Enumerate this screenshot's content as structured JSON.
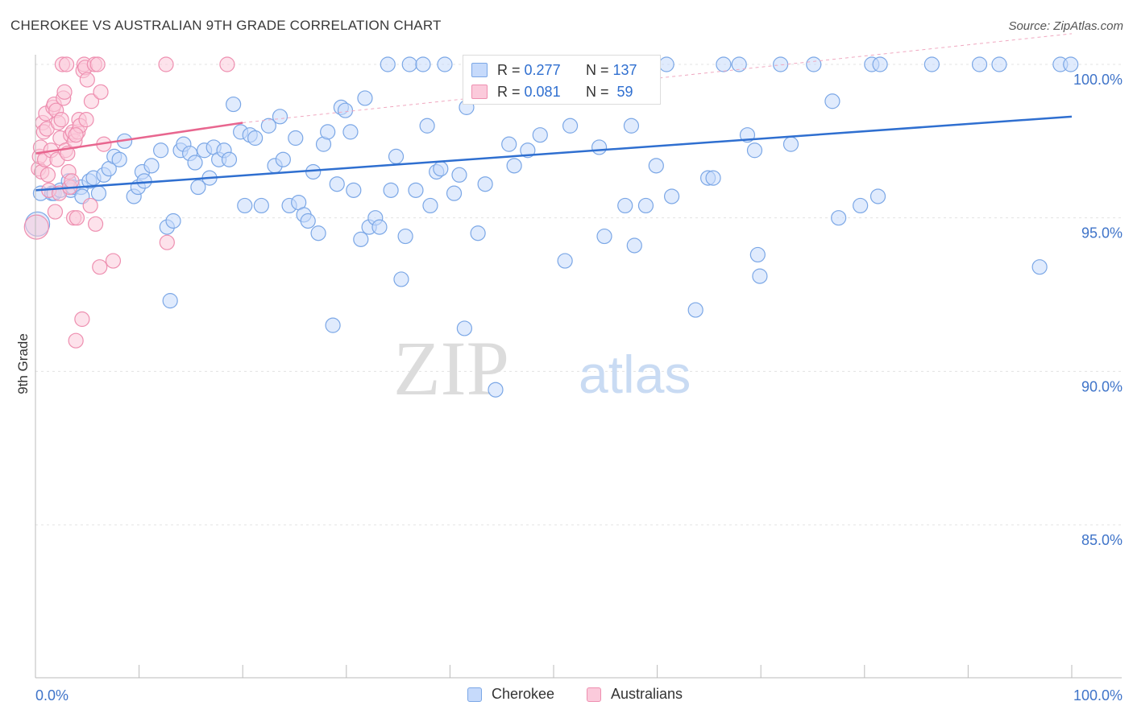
{
  "title": "CHEROKEE VS AUSTRALIAN 9TH GRADE CORRELATION CHART",
  "source": "Source: ZipAtlas.com",
  "watermark": {
    "zip": "ZIP",
    "atlas": "atlas"
  },
  "stats": [
    {
      "r_label": "R =",
      "r_value": "0.277",
      "n_label": "N =",
      "n_value": "137",
      "color": "#7ba7e6",
      "fill": "#c6dafb"
    },
    {
      "r_label": "R =",
      "r_value": "0.081",
      "n_label": "N =",
      "n_value": "59",
      "color": "#ee8fb0",
      "fill": "#fbcadb"
    }
  ],
  "legend": [
    {
      "label": "Cherokee",
      "color": "#7ba7e6",
      "fill": "#c6dafb"
    },
    {
      "label": "Australians",
      "color": "#ee8fb0",
      "fill": "#fbcadb"
    }
  ],
  "chart_data": {
    "type": "scatter",
    "title": "CHEROKEE VS AUSTRALIAN 9TH GRADE CORRELATION CHART",
    "xlabel": "",
    "ylabel": "9th Grade",
    "xlim": [
      0,
      100
    ],
    "ylim": [
      80.5,
      101
    ],
    "x_tick_labels": [
      "0.0%",
      "100.0%"
    ],
    "y_ticks": [
      85,
      90,
      95,
      100
    ],
    "y_tick_labels": [
      "85.0%",
      "90.0%",
      "95.0%",
      "100.0%"
    ],
    "grid": true,
    "legend_position": "bottom",
    "series": [
      {
        "name": "Cherokee",
        "color": "#2f6fd0",
        "fill": "#c6dafb",
        "stroke": "#7ba7e6",
        "trendline": {
          "x": [
            0,
            100
          ],
          "y": [
            95.9,
            98.3
          ]
        },
        "points": [
          [
            0.2,
            94.8
          ],
          [
            0.5,
            95.8
          ],
          [
            1.6,
            95.8
          ],
          [
            1.8,
            95.8
          ],
          [
            2.4,
            95.9
          ],
          [
            3.2,
            96.2
          ],
          [
            3.4,
            95.9
          ],
          [
            3.6,
            96.0
          ],
          [
            4.4,
            96.0
          ],
          [
            4.5,
            95.7
          ],
          [
            5.2,
            96.2
          ],
          [
            5.6,
            96.3
          ],
          [
            6.1,
            95.8
          ],
          [
            6.6,
            96.4
          ],
          [
            7.1,
            96.6
          ],
          [
            7.6,
            97.0
          ],
          [
            8.1,
            96.9
          ],
          [
            8.6,
            97.5
          ],
          [
            9.5,
            95.7
          ],
          [
            9.9,
            96.0
          ],
          [
            10.3,
            96.5
          ],
          [
            10.5,
            96.2
          ],
          [
            11.2,
            96.7
          ],
          [
            12.1,
            97.2
          ],
          [
            12.7,
            94.7
          ],
          [
            13.0,
            92.3
          ],
          [
            13.3,
            94.9
          ],
          [
            14.0,
            97.2
          ],
          [
            14.3,
            97.4
          ],
          [
            14.9,
            97.1
          ],
          [
            15.4,
            96.8
          ],
          [
            15.7,
            96.0
          ],
          [
            16.3,
            97.2
          ],
          [
            16.8,
            96.3
          ],
          [
            17.2,
            97.3
          ],
          [
            17.7,
            96.9
          ],
          [
            18.2,
            97.2
          ],
          [
            18.7,
            96.9
          ],
          [
            19.1,
            98.7
          ],
          [
            19.8,
            97.8
          ],
          [
            20.2,
            95.4
          ],
          [
            20.7,
            97.7
          ],
          [
            21.2,
            97.6
          ],
          [
            21.8,
            95.4
          ],
          [
            22.5,
            98.0
          ],
          [
            23.1,
            96.7
          ],
          [
            23.6,
            98.3
          ],
          [
            23.9,
            96.9
          ],
          [
            24.5,
            95.4
          ],
          [
            25.1,
            97.6
          ],
          [
            25.4,
            95.5
          ],
          [
            25.9,
            95.1
          ],
          [
            26.3,
            94.9
          ],
          [
            26.8,
            96.5
          ],
          [
            27.3,
            94.5
          ],
          [
            27.8,
            97.4
          ],
          [
            28.2,
            97.8
          ],
          [
            28.7,
            91.5
          ],
          [
            29.1,
            96.1
          ],
          [
            29.5,
            98.6
          ],
          [
            29.9,
            98.5
          ],
          [
            30.4,
            97.8
          ],
          [
            30.7,
            95.9
          ],
          [
            31.4,
            94.3
          ],
          [
            31.8,
            98.9
          ],
          [
            32.2,
            94.7
          ],
          [
            32.8,
            95.0
          ],
          [
            33.2,
            94.7
          ],
          [
            34.0,
            100.0
          ],
          [
            34.3,
            95.9
          ],
          [
            34.8,
            97.0
          ],
          [
            35.3,
            93.0
          ],
          [
            35.7,
            94.4
          ],
          [
            36.1,
            100.0
          ],
          [
            36.7,
            95.9
          ],
          [
            37.4,
            100.0
          ],
          [
            37.8,
            98.0
          ],
          [
            38.1,
            95.4
          ],
          [
            38.7,
            96.5
          ],
          [
            39.1,
            96.6
          ],
          [
            39.5,
            100.0
          ],
          [
            40.4,
            95.8
          ],
          [
            40.9,
            96.4
          ],
          [
            41.4,
            91.4
          ],
          [
            41.6,
            98.6
          ],
          [
            42.2,
            100.0
          ],
          [
            42.7,
            94.5
          ],
          [
            43.4,
            96.1
          ],
          [
            44.4,
            89.4
          ],
          [
            45.4,
            100.0
          ],
          [
            45.7,
            97.4
          ],
          [
            46.2,
            96.7
          ],
          [
            47.2,
            100.0
          ],
          [
            47.5,
            97.2
          ],
          [
            48.2,
            100.0
          ],
          [
            48.7,
            97.7
          ],
          [
            50.7,
            100.0
          ],
          [
            51.1,
            93.6
          ],
          [
            51.6,
            98.0
          ],
          [
            52.4,
            100.0
          ],
          [
            54.4,
            97.3
          ],
          [
            54.9,
            94.4
          ],
          [
            55.6,
            100.0
          ],
          [
            56.9,
            95.4
          ],
          [
            57.5,
            98.0
          ],
          [
            57.8,
            94.1
          ],
          [
            58.9,
            95.4
          ],
          [
            59.9,
            96.7
          ],
          [
            60.9,
            100.0
          ],
          [
            61.4,
            95.7
          ],
          [
            63.7,
            92.0
          ],
          [
            64.9,
            96.3
          ],
          [
            65.4,
            96.3
          ],
          [
            66.4,
            100.0
          ],
          [
            67.9,
            100.0
          ],
          [
            68.7,
            97.7
          ],
          [
            69.4,
            97.2
          ],
          [
            69.7,
            93.8
          ],
          [
            69.9,
            93.1
          ],
          [
            71.9,
            100.0
          ],
          [
            72.9,
            97.4
          ],
          [
            75.1,
            100.0
          ],
          [
            76.9,
            98.8
          ],
          [
            77.5,
            95.0
          ],
          [
            79.6,
            95.4
          ],
          [
            80.7,
            100.0
          ],
          [
            81.3,
            95.7
          ],
          [
            81.5,
            100.0
          ],
          [
            86.5,
            100.0
          ],
          [
            91.1,
            100.0
          ],
          [
            93.0,
            100.0
          ],
          [
            96.9,
            93.4
          ],
          [
            98.9,
            100.0
          ],
          [
            99.9,
            100.0
          ]
        ]
      },
      {
        "name": "Australians",
        "color": "#e8668f",
        "fill": "#fbcadb",
        "stroke": "#ee8fb0",
        "trendline": {
          "x": [
            0,
            20
          ],
          "y": [
            97.1,
            98.1
          ],
          "dashed_extension": {
            "x": [
              20,
              100
            ],
            "y": [
              98.1,
              101.0
            ]
          }
        },
        "points": [
          [
            0.1,
            94.7
          ],
          [
            0.3,
            96.6
          ],
          [
            0.4,
            97.0
          ],
          [
            0.5,
            97.3
          ],
          [
            0.6,
            96.5
          ],
          [
            0.7,
            98.1
          ],
          [
            0.8,
            97.8
          ],
          [
            0.9,
            96.9
          ],
          [
            1.0,
            98.4
          ],
          [
            1.1,
            97.9
          ],
          [
            1.2,
            96.4
          ],
          [
            1.3,
            95.9
          ],
          [
            1.5,
            97.2
          ],
          [
            1.7,
            98.6
          ],
          [
            1.8,
            98.7
          ],
          [
            1.9,
            95.2
          ],
          [
            2.0,
            98.5
          ],
          [
            2.1,
            96.9
          ],
          [
            2.2,
            98.1
          ],
          [
            2.3,
            95.8
          ],
          [
            2.4,
            97.6
          ],
          [
            2.5,
            98.2
          ],
          [
            2.6,
            100.0
          ],
          [
            2.7,
            98.9
          ],
          [
            2.8,
            99.1
          ],
          [
            2.9,
            97.2
          ],
          [
            3.0,
            100.0
          ],
          [
            3.1,
            97.1
          ],
          [
            3.2,
            96.5
          ],
          [
            3.3,
            96.0
          ],
          [
            3.4,
            97.7
          ],
          [
            3.5,
            96.2
          ],
          [
            3.6,
            97.8
          ],
          [
            3.7,
            95.0
          ],
          [
            3.8,
            97.5
          ],
          [
            3.9,
            91.0
          ],
          [
            4.0,
            95.0
          ],
          [
            4.1,
            97.8
          ],
          [
            4.2,
            98.2
          ],
          [
            4.3,
            98.0
          ],
          [
            4.5,
            91.7
          ],
          [
            4.6,
            99.8
          ],
          [
            4.7,
            100.0
          ],
          [
            4.8,
            99.9
          ],
          [
            4.9,
            98.2
          ],
          [
            5.0,
            99.5
          ],
          [
            5.3,
            95.4
          ],
          [
            5.4,
            98.8
          ],
          [
            5.7,
            100.0
          ],
          [
            5.8,
            94.8
          ],
          [
            6.0,
            100.0
          ],
          [
            6.3,
            99.1
          ],
          [
            6.6,
            97.4
          ],
          [
            7.5,
            93.6
          ],
          [
            12.7,
            94.2
          ],
          [
            12.6,
            100.0
          ],
          [
            18.5,
            100.0
          ],
          [
            6.2,
            93.4
          ],
          [
            3.9,
            97.7
          ]
        ]
      }
    ]
  }
}
